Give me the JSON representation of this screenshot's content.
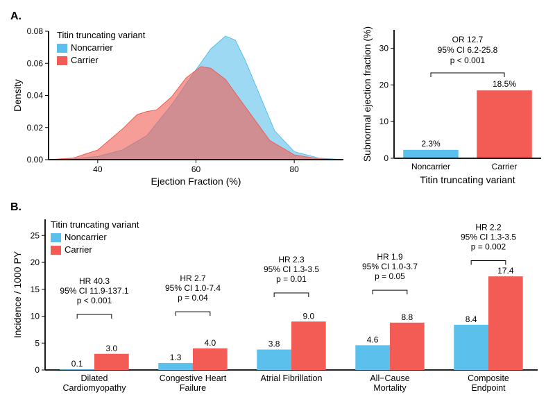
{
  "colors": {
    "noncarrier": "#5bc0eb",
    "carrier": "#f25c54",
    "noncarrier_fill": "rgba(91,192,235,0.6)",
    "carrier_fill": "rgba(242,92,84,0.6)",
    "axis": "#000000",
    "bg": "#ffffff"
  },
  "legend": {
    "title": "Titin truncating variant",
    "items": [
      "Noncarrier",
      "Carrier"
    ]
  },
  "panelA": {
    "label": "A.",
    "density": {
      "xlabel": "Ejection Fraction (%)",
      "ylabel": "Density",
      "xlim": [
        30,
        90
      ],
      "ylim": [
        0,
        0.08
      ],
      "xticks": [
        40,
        60,
        80
      ],
      "yticks": [
        0.0,
        0.02,
        0.04,
        0.06,
        0.08
      ],
      "noncarrier_curve": [
        [
          30,
          0.0
        ],
        [
          35,
          0.0005
        ],
        [
          40,
          0.002
        ],
        [
          45,
          0.006
        ],
        [
          50,
          0.015
        ],
        [
          55,
          0.034
        ],
        [
          60,
          0.056
        ],
        [
          63,
          0.069
        ],
        [
          66,
          0.077
        ],
        [
          68,
          0.0745
        ],
        [
          70,
          0.062
        ],
        [
          73,
          0.04
        ],
        [
          76,
          0.018
        ],
        [
          80,
          0.005
        ],
        [
          85,
          0.001
        ],
        [
          90,
          0.0
        ]
      ],
      "carrier_curve": [
        [
          30,
          0.0
        ],
        [
          35,
          0.001
        ],
        [
          40,
          0.006
        ],
        [
          45,
          0.019
        ],
        [
          48,
          0.028
        ],
        [
          50,
          0.03
        ],
        [
          52,
          0.031
        ],
        [
          55,
          0.039
        ],
        [
          58,
          0.051
        ],
        [
          61,
          0.058
        ],
        [
          63,
          0.057
        ],
        [
          66,
          0.05
        ],
        [
          70,
          0.033
        ],
        [
          75,
          0.012
        ],
        [
          80,
          0.003
        ],
        [
          85,
          0.0005
        ],
        [
          90,
          0.0
        ]
      ]
    },
    "bars": {
      "ylabel": "Subnormal ejection fraction (%)",
      "xlabel": "Titin truncating variant",
      "ylim": [
        0,
        35
      ],
      "yticks": [
        0,
        10,
        20,
        30
      ],
      "categories": [
        "Noncarrier",
        "Carrier"
      ],
      "values": [
        2.3,
        18.5
      ],
      "value_labels": [
        "2.3%",
        "18.5%"
      ],
      "stats": [
        "OR 12.7",
        "95% CI 6.2-25.8",
        "p < 0.001"
      ]
    }
  },
  "panelB": {
    "label": "B.",
    "ylabel": "Incidence / 1000 PY",
    "ylim": [
      0,
      28
    ],
    "yticks": [
      0,
      5,
      10,
      15,
      20,
      25
    ],
    "groups": [
      {
        "name": "Dilated\nCardiomyopathy",
        "noncarrier": 0.1,
        "carrier": 3.0,
        "nc_label": "0.1",
        "c_label": "3.0",
        "stats": [
          "HR 40.3",
          "95% CI 11.9-137.1",
          "p < 0.001"
        ]
      },
      {
        "name": "Congestive Heart\nFailure",
        "noncarrier": 1.3,
        "carrier": 4.0,
        "nc_label": "1.3",
        "c_label": "4.0",
        "stats": [
          "HR 2.7",
          "95% CI 1.0-7.4",
          "p = 0.04"
        ]
      },
      {
        "name": "Atrial Fibrillation",
        "noncarrier": 3.8,
        "carrier": 9.0,
        "nc_label": "3.8",
        "c_label": "9.0",
        "stats": [
          "HR 2.3",
          "95% CI 1.3-3.5",
          "p = 0.01"
        ]
      },
      {
        "name": "All−Cause\nMortality",
        "noncarrier": 4.6,
        "carrier": 8.8,
        "nc_label": "4.6",
        "c_label": "8.8",
        "stats": [
          "HR 1.9",
          "95% CI 1.0-3.7",
          "p = 0.05"
        ]
      },
      {
        "name": "Composite\nEndpoint",
        "noncarrier": 8.4,
        "carrier": 17.4,
        "nc_label": "8.4",
        "c_label": "17.4",
        "stats": [
          "HR 2.2",
          "95% CI 1.3-3.5",
          "p = 0.002"
        ]
      }
    ]
  }
}
